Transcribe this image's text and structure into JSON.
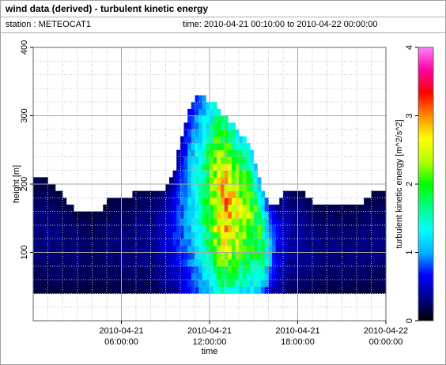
{
  "header": {
    "title": "wind data (derived) - turbulent kinetic energy",
    "station": "station : METEOCAT1",
    "time_range": "time: 2010-04-21 00:10:00 to 2010-04-22 00:00:00"
  },
  "chart_data": {
    "type": "heatmap",
    "xlabel": "time",
    "ylabel": "height [m]",
    "colorbar_label": "turbulent kinetic energy [m^2/s^2]",
    "x_start": "2010-04-21 00:00:00",
    "x_end": "2010-04-22 00:00:00",
    "x_ticks": [
      {
        "line1": "2010-04-21",
        "line2": "06:00:00",
        "hour": 6
      },
      {
        "line1": "2010-04-21",
        "line2": "12:00:00",
        "hour": 12
      },
      {
        "line1": "2010-04-21",
        "line2": "18:00:00",
        "hour": 18
      },
      {
        "line1": "2010-04-22",
        "line2": "00:00:00",
        "hour": 24
      }
    ],
    "ylim": [
      0,
      400
    ],
    "y_ticks": [
      100,
      200,
      300,
      400
    ],
    "color_range": [
      0,
      4
    ],
    "colorbar_ticks": [
      0,
      1,
      2,
      3,
      4
    ],
    "grid": true,
    "bottom_height_m": 40,
    "profile_top_m": [
      [
        0.0,
        205
      ],
      [
        0.5,
        205
      ],
      [
        1.0,
        205
      ],
      [
        1.5,
        195
      ],
      [
        2.0,
        185
      ],
      [
        2.5,
        170
      ],
      [
        3.0,
        155
      ],
      [
        4.0,
        155
      ],
      [
        4.5,
        155
      ],
      [
        5.0,
        175
      ],
      [
        6.0,
        175
      ],
      [
        6.5,
        180
      ],
      [
        7.0,
        190
      ],
      [
        7.5,
        190
      ],
      [
        8.0,
        190
      ],
      [
        8.5,
        190
      ],
      [
        9.0,
        195
      ],
      [
        9.5,
        210
      ],
      [
        10.0,
        260
      ],
      [
        10.5,
        300
      ],
      [
        11.0,
        330
      ],
      [
        11.5,
        330
      ],
      [
        12.0,
        320
      ],
      [
        12.5,
        315
      ],
      [
        13.0,
        300
      ],
      [
        13.5,
        290
      ],
      [
        14.0,
        270
      ],
      [
        14.5,
        265
      ],
      [
        15.0,
        240
      ],
      [
        15.5,
        200
      ],
      [
        16.0,
        170
      ],
      [
        16.5,
        170
      ],
      [
        17.0,
        185
      ],
      [
        17.5,
        185
      ],
      [
        18.0,
        185
      ],
      [
        18.5,
        185
      ],
      [
        19.0,
        175
      ],
      [
        20.0,
        165
      ],
      [
        21.0,
        165
      ],
      [
        22.0,
        165
      ],
      [
        22.5,
        175
      ],
      [
        23.0,
        185
      ],
      [
        23.5,
        185
      ],
      [
        24.0,
        185
      ]
    ],
    "tke_max_by_time": [
      [
        0.0,
        0.3
      ],
      [
        2.0,
        0.3
      ],
      [
        4.0,
        0.25
      ],
      [
        6.0,
        0.3
      ],
      [
        8.0,
        0.35
      ],
      [
        9.0,
        0.5
      ],
      [
        10.0,
        0.8
      ],
      [
        11.0,
        1.3
      ],
      [
        12.0,
        2.0
      ],
      [
        12.5,
        2.6
      ],
      [
        13.0,
        2.9
      ],
      [
        13.5,
        2.7
      ],
      [
        14.0,
        2.4
      ],
      [
        15.0,
        2.1
      ],
      [
        15.5,
        1.9
      ],
      [
        16.0,
        1.2
      ],
      [
        16.5,
        0.7
      ],
      [
        17.5,
        0.4
      ],
      [
        20.0,
        0.3
      ],
      [
        24.0,
        0.3
      ]
    ]
  },
  "colors": {
    "grid": "#c0c0c0",
    "axis": "#606060",
    "colormap": [
      "#000000",
      "#00008c",
      "#0000ff",
      "#00b4ff",
      "#00ffff",
      "#00ff82",
      "#00ff00",
      "#b4ff00",
      "#ffff00",
      "#ff8c00",
      "#ff0000",
      "#ff00a0",
      "#ff80ff"
    ]
  }
}
